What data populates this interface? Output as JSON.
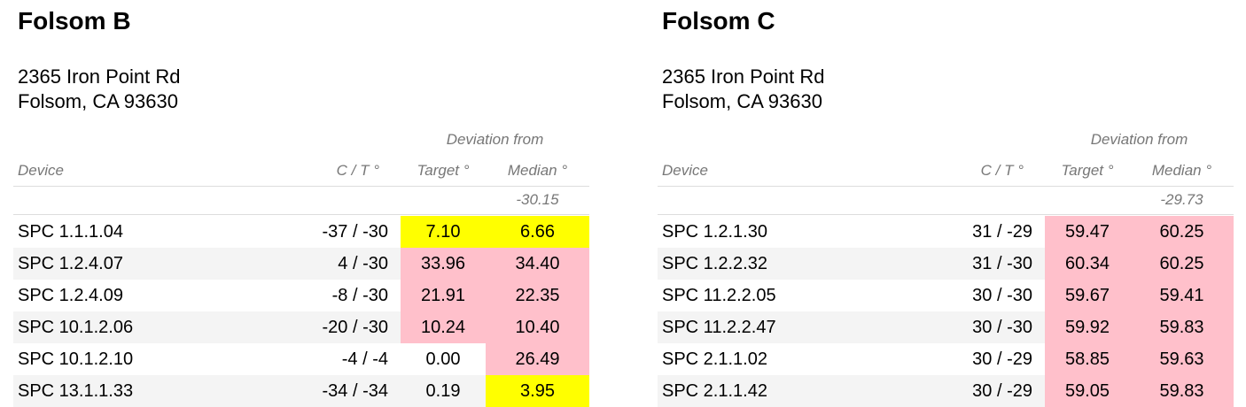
{
  "panels": [
    {
      "title": "Folsom B",
      "address": [
        "2365 Iron Point Rd",
        "Folsom, CA 93630"
      ],
      "group_header": "Deviation from",
      "columns": [
        "Device",
        "C / T °",
        "Target °",
        "Median °"
      ],
      "median_reference": "-30.15",
      "rows": [
        {
          "cells": [
            "SPC 1.1.1.04",
            "-37 / -30",
            "7.10",
            "6.66"
          ],
          "colors": [
            null,
            null,
            "#ffff00",
            "#ffff00"
          ]
        },
        {
          "cells": [
            "SPC 1.2.4.07",
            "4 / -30",
            "33.96",
            "34.40"
          ],
          "colors": [
            null,
            null,
            "#ffc0cb",
            "#ffc0cb"
          ]
        },
        {
          "cells": [
            "SPC 1.2.4.09",
            "-8 / -30",
            "21.91",
            "22.35"
          ],
          "colors": [
            null,
            null,
            "#ffc0cb",
            "#ffc0cb"
          ]
        },
        {
          "cells": [
            "SPC 10.1.2.06",
            "-20 / -30",
            "10.24",
            "10.40"
          ],
          "colors": [
            null,
            null,
            "#ffc0cb",
            "#ffc0cb"
          ]
        },
        {
          "cells": [
            "SPC 10.1.2.10",
            "-4 / -4",
            "0.00",
            "26.49"
          ],
          "colors": [
            null,
            null,
            null,
            "#ffc0cb"
          ]
        },
        {
          "cells": [
            "SPC 13.1.1.33",
            "-34 / -34",
            "0.19",
            "3.95"
          ],
          "colors": [
            null,
            null,
            null,
            "#ffff00"
          ]
        }
      ]
    },
    {
      "title": "Folsom C",
      "address": [
        "2365 Iron Point Rd",
        "Folsom, CA 93630"
      ],
      "group_header": "Deviation from",
      "columns": [
        "Device",
        "C / T °",
        "Target °",
        "Median °"
      ],
      "median_reference": "-29.73",
      "rows": [
        {
          "cells": [
            "SPC 1.2.1.30",
            "31 / -29",
            "59.47",
            "60.25"
          ],
          "colors": [
            null,
            null,
            "#ffc0cb",
            "#ffc0cb"
          ]
        },
        {
          "cells": [
            "SPC 1.2.2.32",
            "31 / -30",
            "60.34",
            "60.25"
          ],
          "colors": [
            null,
            null,
            "#ffc0cb",
            "#ffc0cb"
          ]
        },
        {
          "cells": [
            "SPC 11.2.2.05",
            "30 / -30",
            "59.67",
            "59.41"
          ],
          "colors": [
            null,
            null,
            "#ffc0cb",
            "#ffc0cb"
          ]
        },
        {
          "cells": [
            "SPC 11.2.2.47",
            "30 / -30",
            "59.92",
            "59.83"
          ],
          "colors": [
            null,
            null,
            "#ffc0cb",
            "#ffc0cb"
          ]
        },
        {
          "cells": [
            "SPC 2.1.1.02",
            "30 / -29",
            "58.85",
            "59.63"
          ],
          "colors": [
            null,
            null,
            "#ffc0cb",
            "#ffc0cb"
          ]
        },
        {
          "cells": [
            "SPC 2.1.1.42",
            "30 / -29",
            "59.05",
            "59.83"
          ],
          "colors": [
            null,
            null,
            "#ffc0cb",
            "#ffc0cb"
          ]
        }
      ]
    }
  ]
}
